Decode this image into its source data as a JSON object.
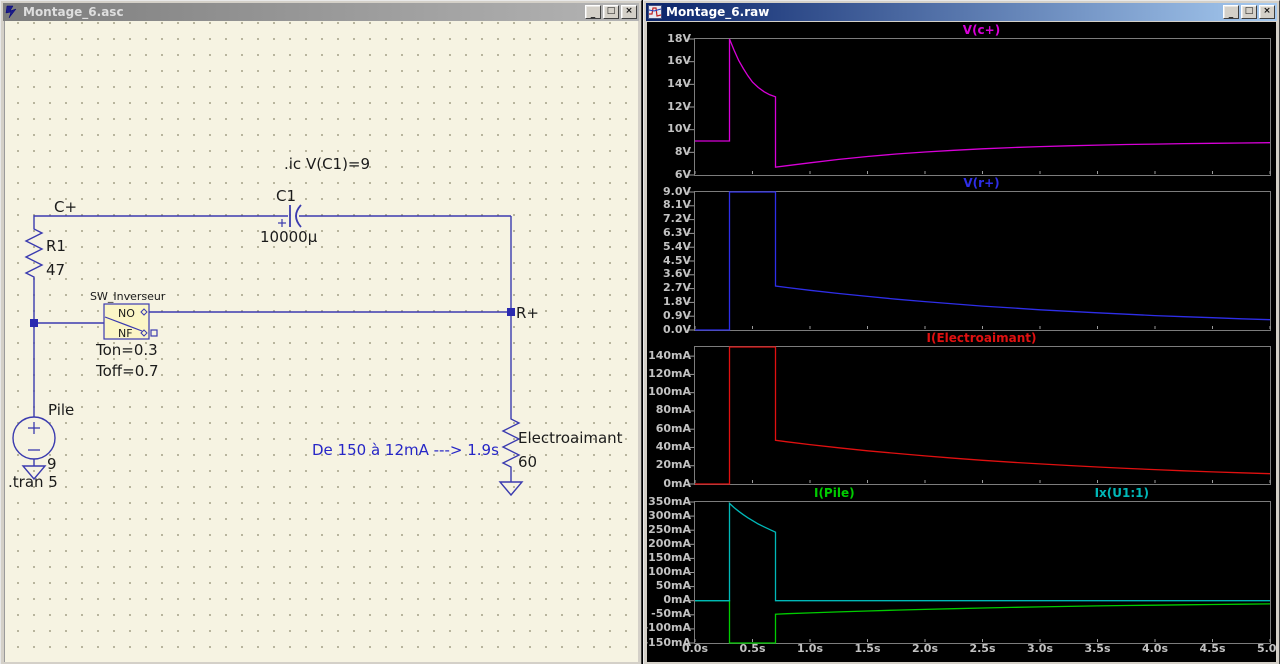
{
  "left_window": {
    "title": "Montage_6.asc",
    "icon": "ltspice-schematic-icon",
    "controls": {
      "minimize": "_",
      "maximize": "□",
      "close": "×"
    },
    "schematic": {
      "directive_ic": ".ic V(C1)=9",
      "directive_tran": ".tran 5",
      "node_c": "C+",
      "node_r": "R+",
      "r1_name": "R1",
      "r1_value": "47",
      "cap_name": "C1",
      "cap_value": "10000µ",
      "switch_name": "SW_Inverseur",
      "switch_pin_no": "NO",
      "switch_pin_nf": "NF",
      "switch_ton": "Ton=0.3",
      "switch_toff": "Toff=0.7",
      "source_name": "Pile",
      "source_value": "9",
      "load_name": "Electroaimant",
      "load_value": "60",
      "comment": "De 150 à 12mA ---> 1.9s"
    }
  },
  "right_window": {
    "title": "Montage_6.raw",
    "icon": "waveform-icon",
    "controls": {
      "minimize": "_",
      "maximize": "□",
      "close": "×"
    }
  },
  "chart_data": {
    "type": "line",
    "xlim": [
      0,
      5
    ],
    "grid": false,
    "background": "#000000",
    "xticks": [
      {
        "v": 0.0,
        "label": "0.0s"
      },
      {
        "v": 0.5,
        "label": "0.5s"
      },
      {
        "v": 1.0,
        "label": "1.0s"
      },
      {
        "v": 1.5,
        "label": "1.5s"
      },
      {
        "v": 2.0,
        "label": "2.0s"
      },
      {
        "v": 2.5,
        "label": "2.5s"
      },
      {
        "v": 3.0,
        "label": "3.0s"
      },
      {
        "v": 3.5,
        "label": "3.5s"
      },
      {
        "v": 4.0,
        "label": "4.0s"
      },
      {
        "v": 4.5,
        "label": "4.5s"
      },
      {
        "v": 5.0,
        "label": "5.0s"
      }
    ],
    "panes": [
      {
        "ylim": [
          6,
          18
        ],
        "yticks": [
          {
            "v": 18,
            "label": "18V"
          },
          {
            "v": 16,
            "label": "16V"
          },
          {
            "v": 14,
            "label": "14V"
          },
          {
            "v": 12,
            "label": "12V"
          },
          {
            "v": 10,
            "label": "10V"
          },
          {
            "v": 8,
            "label": "8V"
          },
          {
            "v": 6,
            "label": "6V"
          }
        ],
        "traces": [
          {
            "name": "V(c+)",
            "color": "#d800d8",
            "points": [
              [
                0,
                9
              ],
              [
                0.3,
                9
              ],
              [
                0.3,
                18
              ],
              [
                0.34,
                17.0
              ],
              [
                0.38,
                16.1
              ],
              [
                0.42,
                15.4
              ],
              [
                0.46,
                14.75
              ],
              [
                0.5,
                14.2
              ],
              [
                0.55,
                13.72
              ],
              [
                0.6,
                13.35
              ],
              [
                0.65,
                13.08
              ],
              [
                0.7,
                12.9
              ],
              [
                0.7,
                6.7
              ],
              [
                0.8,
                6.82
              ],
              [
                1.0,
                7.08
              ],
              [
                1.25,
                7.38
              ],
              [
                1.5,
                7.63
              ],
              [
                1.75,
                7.85
              ],
              [
                2.0,
                8.03
              ],
              [
                2.25,
                8.18
              ],
              [
                2.5,
                8.31
              ],
              [
                2.75,
                8.42
              ],
              [
                3.0,
                8.51
              ],
              [
                3.25,
                8.58
              ],
              [
                3.5,
                8.64
              ],
              [
                3.75,
                8.69
              ],
              [
                4.0,
                8.73
              ],
              [
                4.25,
                8.77
              ],
              [
                4.5,
                8.8
              ],
              [
                4.75,
                8.82
              ],
              [
                5.0,
                8.85
              ]
            ]
          }
        ]
      },
      {
        "ylim": [
          0,
          9
        ],
        "yticks": [
          {
            "v": 9.0,
            "label": "9.0V"
          },
          {
            "v": 8.1,
            "label": "8.1V"
          },
          {
            "v": 7.2,
            "label": "7.2V"
          },
          {
            "v": 6.3,
            "label": "6.3V"
          },
          {
            "v": 5.4,
            "label": "5.4V"
          },
          {
            "v": 4.5,
            "label": "4.5V"
          },
          {
            "v": 3.6,
            "label": "3.6V"
          },
          {
            "v": 2.7,
            "label": "2.7V"
          },
          {
            "v": 1.8,
            "label": "1.8V"
          },
          {
            "v": 0.9,
            "label": "0.9V"
          },
          {
            "v": 0.0,
            "label": "0.0V"
          }
        ],
        "traces": [
          {
            "name": "V(r+)",
            "color": "#2e2ee8",
            "points": [
              [
                0,
                0
              ],
              [
                0.3,
                0
              ],
              [
                0.3,
                9
              ],
              [
                0.7,
                9
              ],
              [
                0.7,
                2.87
              ],
              [
                0.8,
                2.77
              ],
              [
                1.0,
                2.59
              ],
              [
                1.25,
                2.38
              ],
              [
                1.5,
                2.19
              ],
              [
                1.75,
                2.01
              ],
              [
                2.0,
                1.85
              ],
              [
                2.25,
                1.7
              ],
              [
                2.5,
                1.56
              ],
              [
                2.75,
                1.44
              ],
              [
                3.0,
                1.32
              ],
              [
                3.25,
                1.22
              ],
              [
                3.5,
                1.12
              ],
              [
                3.75,
                1.03
              ],
              [
                4.0,
                0.94
              ],
              [
                4.25,
                0.87
              ],
              [
                4.5,
                0.8
              ],
              [
                4.75,
                0.73
              ],
              [
                5.0,
                0.67
              ]
            ]
          }
        ]
      },
      {
        "ylim": [
          0,
          150
        ],
        "yticks": [
          {
            "v": 140,
            "label": "140mA"
          },
          {
            "v": 120,
            "label": "120mA"
          },
          {
            "v": 100,
            "label": "100mA"
          },
          {
            "v": 80,
            "label": "80mA"
          },
          {
            "v": 60,
            "label": "60mA"
          },
          {
            "v": 40,
            "label": "40mA"
          },
          {
            "v": 20,
            "label": "20mA"
          },
          {
            "v": 0,
            "label": "0mA"
          }
        ],
        "traces": [
          {
            "name": "I(Electroaimant)",
            "color": "#e01010",
            "points": [
              [
                0,
                0
              ],
              [
                0.3,
                0
              ],
              [
                0.3,
                150
              ],
              [
                0.7,
                150
              ],
              [
                0.7,
                47.8
              ],
              [
                0.8,
                46.2
              ],
              [
                1.0,
                43.1
              ],
              [
                1.25,
                39.6
              ],
              [
                1.5,
                36.4
              ],
              [
                1.75,
                33.5
              ],
              [
                2.0,
                30.8
              ],
              [
                2.25,
                28.3
              ],
              [
                2.5,
                26.0
              ],
              [
                2.75,
                23.9
              ],
              [
                3.0,
                22.0
              ],
              [
                3.25,
                20.3
              ],
              [
                3.5,
                18.6
              ],
              [
                3.75,
                17.1
              ],
              [
                4.0,
                15.8
              ],
              [
                4.25,
                14.5
              ],
              [
                4.5,
                13.3
              ],
              [
                4.75,
                12.3
              ],
              [
                5.0,
                11.3
              ]
            ]
          }
        ]
      },
      {
        "ylim": [
          -150,
          350
        ],
        "yticks": [
          {
            "v": 350,
            "label": "350mA"
          },
          {
            "v": 300,
            "label": "300mA"
          },
          {
            "v": 250,
            "label": "250mA"
          },
          {
            "v": 200,
            "label": "200mA"
          },
          {
            "v": 150,
            "label": "150mA"
          },
          {
            "v": 100,
            "label": "100mA"
          },
          {
            "v": 50,
            "label": "50mA"
          },
          {
            "v": 0,
            "label": "0mA"
          },
          {
            "v": -50,
            "label": "-50mA"
          },
          {
            "v": -100,
            "label": "-100mA"
          },
          {
            "v": -150,
            "label": "-150mA"
          }
        ],
        "traces": [
          {
            "name": "I(Pile)",
            "color": "#00cc00",
            "points": [
              [
                0,
                0
              ],
              [
                0.3,
                0
              ],
              [
                0.3,
                -150
              ],
              [
                0.7,
                -150
              ],
              [
                0.7,
                -47.8
              ],
              [
                0.8,
                -46.2
              ],
              [
                1.0,
                -43.1
              ],
              [
                1.25,
                -39.6
              ],
              [
                1.5,
                -36.4
              ],
              [
                1.75,
                -33.5
              ],
              [
                2.0,
                -30.8
              ],
              [
                2.25,
                -28.3
              ],
              [
                2.5,
                -26.0
              ],
              [
                2.75,
                -23.9
              ],
              [
                3.0,
                -22.0
              ],
              [
                3.25,
                -20.3
              ],
              [
                3.5,
                -18.6
              ],
              [
                3.75,
                -17.1
              ],
              [
                4.0,
                -15.8
              ],
              [
                4.25,
                -14.5
              ],
              [
                4.5,
                -13.3
              ],
              [
                4.75,
                -12.3
              ],
              [
                5.0,
                -11.3
              ]
            ]
          },
          {
            "name": "Ix(U1:1)",
            "color": "#00b8b8",
            "points": [
              [
                0,
                0
              ],
              [
                0.3,
                0
              ],
              [
                0.3,
                345
              ],
              [
                0.34,
                330
              ],
              [
                0.38,
                317
              ],
              [
                0.42,
                305
              ],
              [
                0.46,
                294
              ],
              [
                0.5,
                284
              ],
              [
                0.55,
                272
              ],
              [
                0.6,
                262
              ],
              [
                0.65,
                252
              ],
              [
                0.7,
                243
              ],
              [
                0.7,
                0
              ],
              [
                5.0,
                0
              ]
            ]
          }
        ]
      }
    ]
  }
}
